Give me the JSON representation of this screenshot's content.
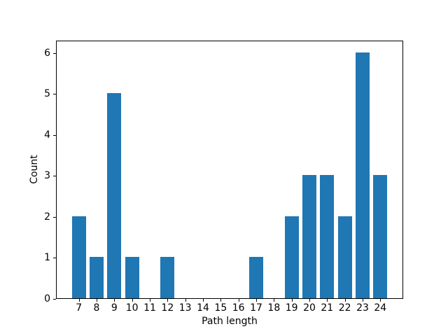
{
  "chart_data": {
    "type": "bar",
    "title": "",
    "xlabel": "Path length",
    "ylabel": "Count",
    "categories": [
      7,
      8,
      9,
      10,
      11,
      12,
      13,
      14,
      15,
      16,
      17,
      18,
      19,
      20,
      21,
      22,
      23,
      24
    ],
    "values": [
      2,
      1,
      5,
      1,
      0,
      1,
      0,
      0,
      0,
      0,
      1,
      0,
      2,
      3,
      3,
      2,
      6,
      3
    ],
    "yticks": [
      0,
      1,
      2,
      3,
      4,
      5,
      6
    ],
    "xlim": [
      5.71,
      25.29
    ],
    "ylim": [
      0,
      6.3
    ],
    "bar_width_units": 0.8,
    "bar_color": "#1f77b4",
    "axis_color": "#000000",
    "background_color": "#ffffff",
    "grid": false,
    "legend": null
  }
}
